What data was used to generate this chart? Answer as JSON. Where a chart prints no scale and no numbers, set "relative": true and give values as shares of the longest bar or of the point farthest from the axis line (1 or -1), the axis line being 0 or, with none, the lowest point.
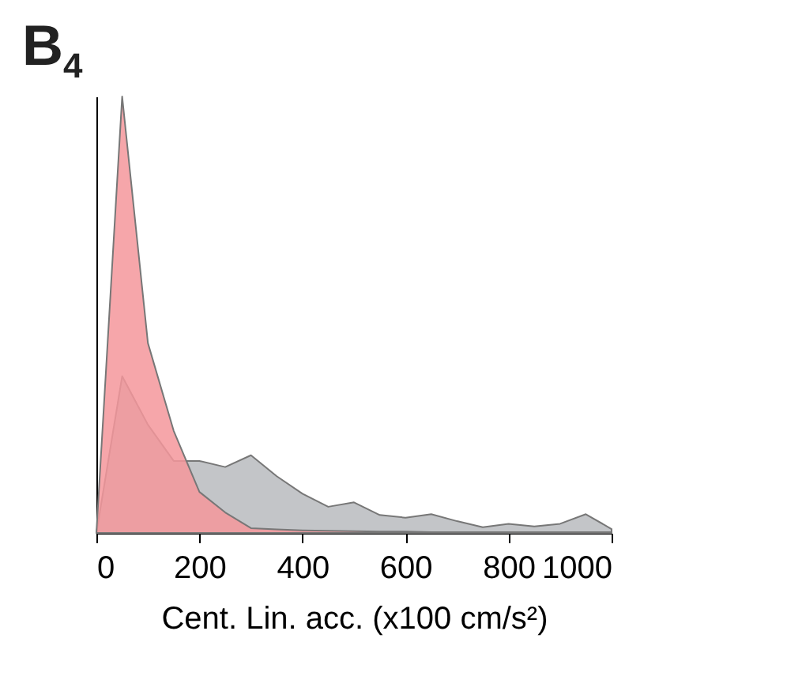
{
  "chart_data": {
    "type": "area",
    "title": "B$_{4}$",
    "xlabel": "Cent. Lin. acc. (x100 cm/s²)",
    "relative": true,
    "tick_labels": "x",
    "x": [
      0,
      50,
      100,
      150,
      200,
      250,
      300,
      350,
      400,
      450,
      500,
      550,
      600,
      650,
      700,
      750,
      800,
      850,
      900,
      950,
      1000
    ],
    "xlim": [
      0,
      1000
    ],
    "xticks": [
      0,
      200,
      400,
      600,
      800,
      {
        "value": 1000,
        "label": "1000"
      }
    ],
    "series": [
      {
        "color": "#b9bbbe",
        "values": [
          0,
          0.359,
          0.248,
          0.165,
          0.165,
          0.151,
          0.178,
          0.13,
          0.09,
          0.06,
          0.07,
          0.041,
          0.035,
          0.043,
          0.027,
          0.013,
          0.021,
          0.015,
          0.021,
          0.043,
          0.009
        ]
      },
      {
        "color": "#f4979b",
        "values": [
          0,
          1,
          0.435,
          0.234,
          0.094,
          0.047,
          0.011,
          0.008,
          0.006,
          0.005,
          0.004,
          0.003,
          0.003,
          0.002,
          0.002,
          0.002,
          0.002,
          0.002,
          0.002,
          0.002,
          0.002
        ]
      }
    ]
  }
}
